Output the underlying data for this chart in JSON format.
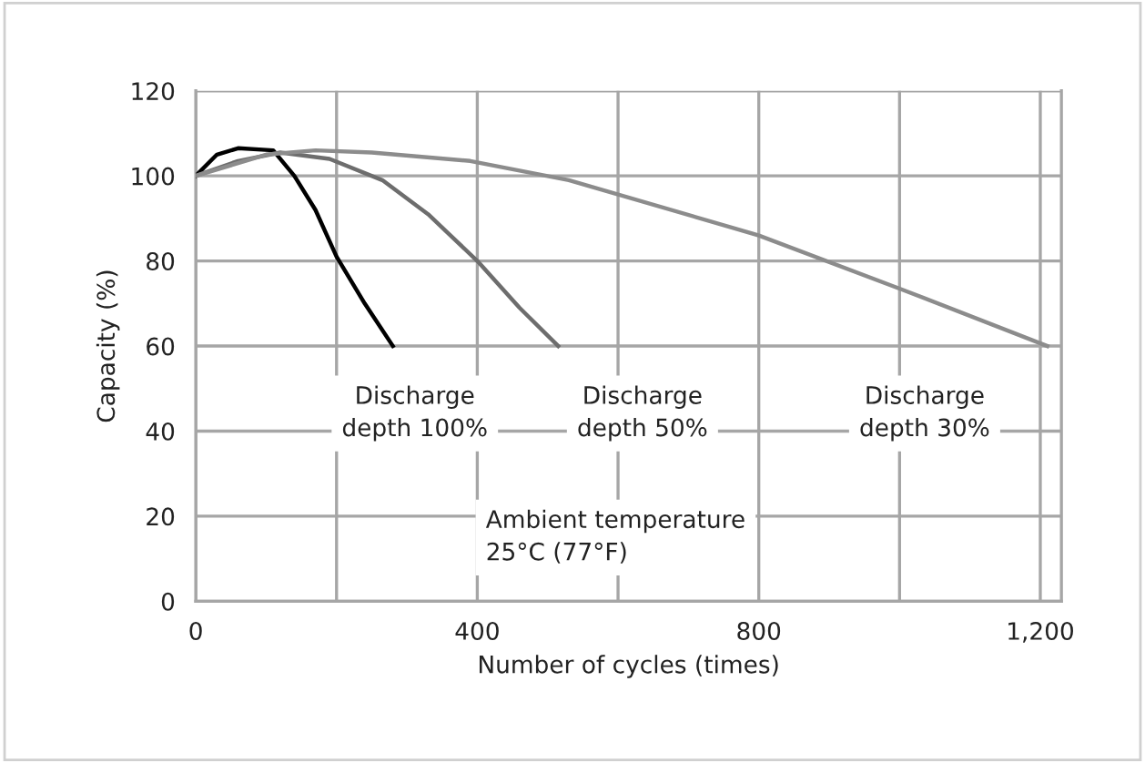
{
  "chart_data": {
    "type": "line",
    "xlabel": "Number of cycles (times)",
    "ylabel": "Capacity (%)",
    "xlim": [
      0,
      1230
    ],
    "ylim": [
      0,
      120
    ],
    "xticks": [
      0,
      {
        "value": 200,
        "label": null
      },
      400,
      {
        "value": 600,
        "label": null
      },
      800,
      {
        "value": 1000,
        "label": null
      },
      {
        "value": 1200,
        "label": "1,200"
      }
    ],
    "yticks": [
      0,
      20,
      40,
      60,
      80,
      100,
      120
    ],
    "grid": true,
    "legend": false,
    "marker": "none",
    "line_style": "solid",
    "series": [
      {
        "color": "#000000",
        "x": [
          0,
          30,
          60,
          110,
          140,
          170,
          200,
          240,
          280
        ],
        "values": [
          100,
          105,
          106.5,
          106,
          100,
          92,
          81,
          70,
          60
        ]
      },
      {
        "color": "#6d6d6d",
        "x": [
          0,
          60,
          120,
          190,
          265,
          330,
          400,
          460,
          515
        ],
        "values": [
          100,
          103.5,
          105.5,
          104,
          99,
          91,
          80,
          69,
          60
        ]
      },
      {
        "color": "#8c8c8c",
        "x": [
          0,
          100,
          170,
          250,
          390,
          530,
          800,
          1000,
          1210
        ],
        "values": [
          100,
          105,
          106,
          105.5,
          103.5,
          99,
          86,
          73.5,
          60
        ]
      }
    ],
    "annotations": [
      "Discharge\ndepth 100%",
      "Discharge\ndepth 50%",
      "Discharge\ndepth 30%",
      "Ambient temperature\n25°C (77°F)"
    ]
  }
}
